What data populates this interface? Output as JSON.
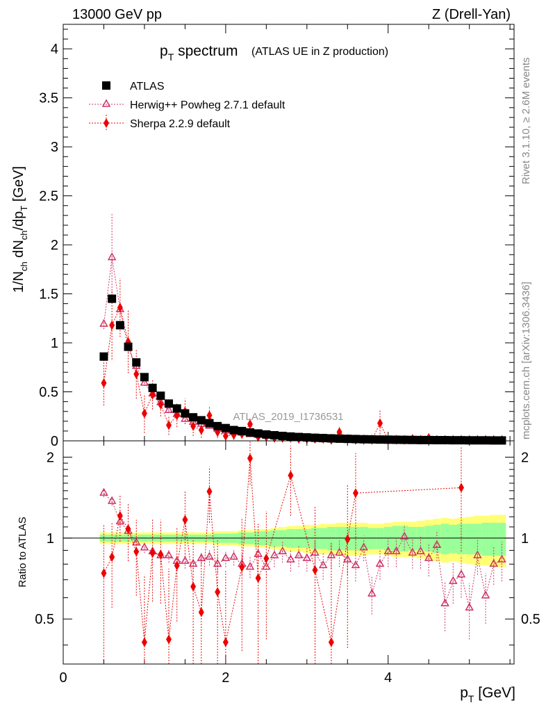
{
  "header": {
    "left": "13000 GeV pp",
    "right": "Z (Drell-Yan)"
  },
  "title": {
    "main": "p",
    "main_sub": "T",
    "main_tail": " spectrum",
    "note": "(ATLAS UE in Z production)"
  },
  "watermark": "ATLAS_2019_I1736531",
  "side_labels": {
    "rivet": "Rivet 3.1.10, ≥ 2.6M events",
    "arxiv": "mcplots.cern.ch [arXiv:1306.3436]"
  },
  "colors": {
    "atlas": "#000000",
    "herwig": "#cc3366",
    "sherpa": "#ee0000",
    "band_inner": "#99ff99",
    "band_outer": "#ffff77"
  },
  "chart_data": [
    {
      "type": "scatter",
      "panel": "main",
      "ylabel": "1/N_ch dN_ch/dp_T [GeV]",
      "ylim": [
        0,
        4.25
      ],
      "xlim": [
        0,
        5.55
      ],
      "yticks": [
        "0",
        "0.5",
        "1",
        "1.5",
        "2",
        "2.5",
        "3",
        "3.5",
        "4"
      ],
      "legend_placement": "top-left",
      "series": [
        {
          "name": "ATLAS",
          "marker": "square",
          "x": [
            0.5,
            0.6,
            0.7,
            0.8,
            0.9,
            1.0,
            1.1,
            1.2,
            1.3,
            1.4,
            1.5,
            1.6,
            1.7,
            1.8,
            1.9,
            2.0,
            2.1,
            2.2,
            2.3,
            2.4,
            2.5,
            2.6,
            2.7,
            2.8,
            2.9,
            3.0,
            3.1,
            3.2,
            3.3,
            3.4,
            3.5,
            3.6,
            3.7,
            3.8,
            3.9,
            4.0,
            4.1,
            4.2,
            4.3,
            4.4,
            4.5,
            4.6,
            4.7,
            4.8,
            4.9,
            5.0,
            5.1,
            5.2,
            5.3,
            5.4
          ],
          "y": [
            0.86,
            1.45,
            1.18,
            0.96,
            0.8,
            0.65,
            0.54,
            0.46,
            0.38,
            0.33,
            0.28,
            0.24,
            0.21,
            0.18,
            0.15,
            0.13,
            0.11,
            0.1,
            0.085,
            0.075,
            0.065,
            0.057,
            0.05,
            0.044,
            0.039,
            0.035,
            0.031,
            0.028,
            0.025,
            0.022,
            0.02,
            0.018,
            0.016,
            0.015,
            0.013,
            0.012,
            0.011,
            0.01,
            0.009,
            0.008,
            0.008,
            0.007,
            0.007,
            0.006,
            0.006,
            0.005,
            0.005,
            0.005,
            0.004,
            0.004
          ]
        },
        {
          "name": "Herwig++ Powheg 2.7.1 default",
          "marker": "open-triangle",
          "x": [
            0.5,
            0.6,
            0.7,
            0.8,
            0.9,
            1.0,
            1.1,
            1.2,
            1.3,
            1.4,
            1.5,
            1.6,
            1.7,
            1.8,
            1.9,
            2.0,
            2.1,
            2.2,
            2.3,
            2.4,
            2.5,
            2.6,
            2.7,
            2.8,
            2.9,
            3.0,
            3.1,
            3.2,
            3.3,
            3.4,
            3.5,
            3.6,
            3.7,
            3.8,
            3.9,
            4.0,
            4.1,
            4.2,
            4.3,
            4.4,
            4.5,
            4.6,
            4.7,
            4.8,
            4.9,
            5.0,
            5.1,
            5.2,
            5.3,
            5.4
          ],
          "y": [
            1.19,
            1.87,
            1.34,
            0.95,
            0.76,
            0.59,
            0.48,
            0.39,
            0.31,
            0.27,
            0.22,
            0.19,
            0.17,
            0.15,
            0.12,
            0.1,
            0.09,
            0.08,
            0.065,
            0.06,
            0.05,
            0.045,
            0.04,
            0.036,
            0.032,
            0.028,
            0.026,
            0.023,
            0.02,
            0.018,
            0.016,
            0.014,
            0.013,
            0.011,
            0.01,
            0.01,
            0.009,
            0.008,
            0.007,
            0.007,
            0.006,
            0.006,
            0.005,
            0.005,
            0.005,
            0.004,
            0.004,
            0.004,
            0.003,
            0.003
          ],
          "yerr": [
            0.05,
            0.45,
            0.08,
            0.05,
            0.04,
            0.03,
            0.03,
            0.03,
            0.02,
            0.02,
            0.02,
            0.02,
            0.02,
            0.02,
            0.02,
            0.02,
            0.02,
            0.02,
            0.02,
            0.02,
            0.02,
            0.02,
            0.02,
            0.02,
            0.02,
            0.02,
            0.02,
            0.02,
            0.02,
            0.02,
            0.02,
            0.02,
            0.02,
            0.02,
            0.02,
            0.02,
            0.02,
            0.02,
            0.02,
            0.02,
            0.02,
            0.02,
            0.02,
            0.02,
            0.02,
            0.02,
            0.02,
            0.02,
            0.02,
            0.02
          ]
        },
        {
          "name": "Sherpa 2.2.9 default",
          "marker": "diamond",
          "x": [
            0.5,
            0.6,
            0.7,
            0.8,
            0.9,
            1.0,
            1.1,
            1.2,
            1.3,
            1.4,
            1.5,
            1.6,
            1.7,
            1.8,
            1.9,
            2.0,
            2.1,
            2.2,
            2.3,
            2.4,
            2.5,
            2.6,
            2.7,
            2.8,
            2.9,
            3.0,
            3.1,
            3.2,
            3.3,
            3.4,
            3.5,
            3.6,
            3.7,
            3.8,
            3.9,
            4.0,
            4.1,
            4.2,
            4.3,
            4.4,
            4.5,
            4.6,
            4.7,
            4.8,
            4.9,
            5.0,
            5.1,
            5.2,
            5.3,
            5.4
          ],
          "y": [
            0.59,
            1.18,
            1.36,
            1.01,
            0.68,
            0.28,
            0.47,
            0.37,
            0.16,
            0.26,
            0.3,
            0.15,
            0.11,
            0.26,
            0.09,
            0.05,
            0.06,
            0.07,
            0.17,
            0.04,
            0.04,
            0.03,
            0.03,
            0.03,
            0.02,
            0.02,
            0.02,
            0.02,
            0.01,
            0.09,
            0.02,
            0.01,
            0.01,
            0.01,
            0.18,
            0.01,
            0.01,
            0.01,
            0.02,
            0.01,
            0.03,
            0.01,
            0.01,
            0.01,
            0.01,
            0.01,
            0.01,
            0.01,
            0.01,
            0.01
          ],
          "yerr": [
            0.23,
            0.35,
            0.3,
            0.32,
            0.25,
            0.2,
            0.15,
            0.12,
            0.1,
            0.12,
            0.13,
            0.1,
            0.08,
            0.1,
            0.06,
            0.05,
            0.05,
            0.05,
            0.07,
            0.04,
            0.04,
            0.04,
            0.04,
            0.04,
            0.03,
            0.03,
            0.03,
            0.03,
            0.03,
            0.05,
            0.03,
            0.03,
            0.03,
            0.03,
            0.14,
            0.03,
            0.03,
            0.03,
            0.03,
            0.03,
            0.03,
            0.03,
            0.03,
            0.03,
            0.03,
            0.03,
            0.03,
            0.03,
            0.03,
            0.03
          ]
        }
      ]
    },
    {
      "type": "scatter",
      "panel": "ratio",
      "ylabel": "Ratio to ATLAS",
      "xlabel": "p_T [GeV]",
      "ylim": [
        0.34,
        2.3
      ],
      "xlim": [
        0,
        5.55
      ],
      "xticks": [
        "0",
        "2",
        "4"
      ],
      "yticks": [
        "0.5",
        "1",
        "2"
      ],
      "reference_line": 1,
      "band": {
        "x": [
          0.45,
          0.55,
          0.65,
          0.75,
          0.85,
          0.95,
          1.05,
          1.15,
          1.25,
          1.35,
          1.45,
          1.55,
          1.65,
          1.75,
          1.85,
          1.95,
          2.05,
          2.15,
          2.25,
          2.35,
          2.45,
          2.55,
          2.65,
          2.75,
          2.85,
          2.95,
          3.05,
          3.15,
          3.25,
          3.35,
          3.45,
          3.55,
          3.65,
          3.75,
          3.85,
          3.95,
          4.05,
          4.15,
          4.25,
          4.35,
          4.45,
          4.55,
          4.65,
          4.75,
          4.85,
          4.95,
          5.05,
          5.15,
          5.25,
          5.35,
          5.45
        ],
        "inner": [
          0.03,
          0.03,
          0.03,
          0.03,
          0.03,
          0.03,
          0.03,
          0.03,
          0.03,
          0.03,
          0.03,
          0.03,
          0.03,
          0.03,
          0.04,
          0.04,
          0.04,
          0.05,
          0.05,
          0.06,
          0.06,
          0.07,
          0.07,
          0.08,
          0.08,
          0.08,
          0.09,
          0.09,
          0.1,
          0.1,
          0.1,
          0.1,
          0.1,
          0.09,
          0.09,
          0.1,
          0.11,
          0.11,
          0.1,
          0.1,
          0.11,
          0.12,
          0.13,
          0.12,
          0.13,
          0.13,
          0.13,
          0.14,
          0.14,
          0.14
        ],
        "outer": [
          0.05,
          0.05,
          0.05,
          0.05,
          0.05,
          0.05,
          0.05,
          0.05,
          0.05,
          0.05,
          0.05,
          0.05,
          0.05,
          0.05,
          0.06,
          0.06,
          0.06,
          0.07,
          0.07,
          0.08,
          0.08,
          0.09,
          0.1,
          0.11,
          0.11,
          0.12,
          0.12,
          0.13,
          0.13,
          0.14,
          0.14,
          0.14,
          0.14,
          0.13,
          0.13,
          0.14,
          0.15,
          0.15,
          0.15,
          0.16,
          0.17,
          0.18,
          0.19,
          0.18,
          0.19,
          0.2,
          0.21,
          0.21,
          0.22,
          0.22
        ]
      },
      "series": [
        {
          "name": "Herwig++ Powheg 2.7.1 default",
          "marker": "open-triangle",
          "x": [
            0.5,
            0.6,
            0.7,
            0.8,
            0.9,
            1.0,
            1.1,
            1.2,
            1.3,
            1.4,
            1.5,
            1.6,
            1.7,
            1.8,
            1.9,
            2.0,
            2.1,
            2.2,
            2.3,
            2.4,
            2.5,
            2.6,
            2.7,
            2.8,
            2.9,
            3.0,
            3.1,
            3.2,
            3.3,
            3.4,
            3.5,
            3.6,
            3.7,
            3.8,
            3.9,
            4.0,
            4.1,
            4.2,
            4.3,
            4.4,
            4.5,
            4.6,
            4.7,
            4.8,
            4.9,
            5.0,
            5.1,
            5.2,
            5.3,
            5.4
          ],
          "y": [
            1.47,
            1.37,
            1.15,
            1.06,
            0.96,
            0.92,
            0.89,
            0.86,
            0.86,
            0.82,
            0.82,
            0.8,
            0.84,
            0.85,
            0.8,
            0.84,
            0.85,
            0.8,
            0.78,
            0.87,
            0.78,
            0.86,
            0.89,
            0.83,
            0.86,
            0.84,
            0.88,
            0.79,
            0.86,
            0.88,
            0.83,
            0.79,
            0.92,
            0.62,
            0.8,
            0.89,
            0.89,
            1.01,
            0.88,
            0.89,
            0.84,
            0.94,
            0.57,
            0.69,
            0.73,
            0.55,
            0.86,
            0.61,
            0.8,
            0.83
          ],
          "yerr": [
            0.05,
            0.05,
            0.04,
            0.04,
            0.04,
            0.04,
            0.04,
            0.05,
            0.05,
            0.05,
            0.05,
            0.05,
            0.05,
            0.06,
            0.06,
            0.06,
            0.06,
            0.07,
            0.07,
            0.07,
            0.07,
            0.08,
            0.08,
            0.08,
            0.08,
            0.09,
            0.09,
            0.09,
            0.09,
            0.1,
            0.1,
            0.1,
            0.1,
            0.1,
            0.1,
            0.11,
            0.11,
            0.11,
            0.11,
            0.12,
            0.12,
            0.12,
            0.12,
            0.12,
            0.13,
            0.13,
            0.13,
            0.13,
            0.13,
            0.14
          ]
        },
        {
          "name": "Sherpa 2.2.9 default",
          "marker": "diamond",
          "x": [
            0.5,
            0.6,
            0.7,
            0.8,
            0.9,
            1.0,
            1.1,
            1.2,
            1.3,
            1.4,
            1.5,
            1.6,
            1.7,
            1.8,
            1.9,
            2.0,
            2.1,
            2.2,
            2.3,
            2.4,
            2.5,
            2.6,
            2.7,
            2.8,
            2.9,
            3.0,
            3.1,
            3.2,
            3.3,
            3.4,
            3.5,
            3.6,
            3.7,
            3.8,
            3.9,
            4.0,
            4.1,
            4.2,
            4.3,
            4.4,
            4.5,
            4.6,
            4.7,
            4.8,
            4.9,
            5.0,
            5.1,
            5.2,
            5.3,
            5.4
          ],
          "y": [
            0.74,
            0.85,
            1.21,
            1.08,
            0.89,
            0.41,
            0.88,
            0.87,
            0.42,
            0.79,
            1.17,
            0.66,
            0.53,
            1.49,
            0.63,
            0.41,
            0.8,
            0.78,
            1.98,
            0.71,
            0.84,
            0.77,
            0.84,
            1.71,
            0.7,
            0.8,
            0.76,
            0.79,
            0.41,
            2.3,
            0.99,
            1.47,
            0.73,
            0.74,
            0.74,
            0.77,
            0.8,
            0.8,
            0.8,
            0.8,
            0.8,
            0.8,
            0.8,
            0.8,
            1.54,
            0.8,
            0.8,
            0.8,
            0.8,
            0.8
          ],
          "yerr": [
            0.38,
            0.3,
            0.24,
            0.26,
            0.28,
            0.32,
            0.3,
            0.3,
            0.35,
            0.3,
            0.32,
            0.32,
            0.32,
            0.35,
            0.35,
            0.35,
            0.4,
            0.4,
            0.4,
            0.42,
            0.42,
            0.42,
            0.45,
            0.5,
            0.5,
            0.5,
            0.55,
            0.55,
            0.55,
            0.6,
            0.6,
            0.6,
            0.62,
            0.62,
            0.62,
            0.62,
            0.62,
            0.62,
            0.62,
            0.62,
            0.62,
            0.62,
            0.62,
            0.62,
            0.65,
            0.62,
            0.62,
            0.62,
            0.62,
            0.62
          ],
          "visible_from_x": 0.5,
          "show_points": [
            0,
            1,
            2,
            3,
            4,
            5,
            6,
            7,
            8,
            9,
            10,
            11,
            12,
            13,
            14,
            15,
            17,
            18,
            19,
            20,
            23,
            26,
            28,
            30,
            31,
            44
          ]
        }
      ]
    }
  ]
}
